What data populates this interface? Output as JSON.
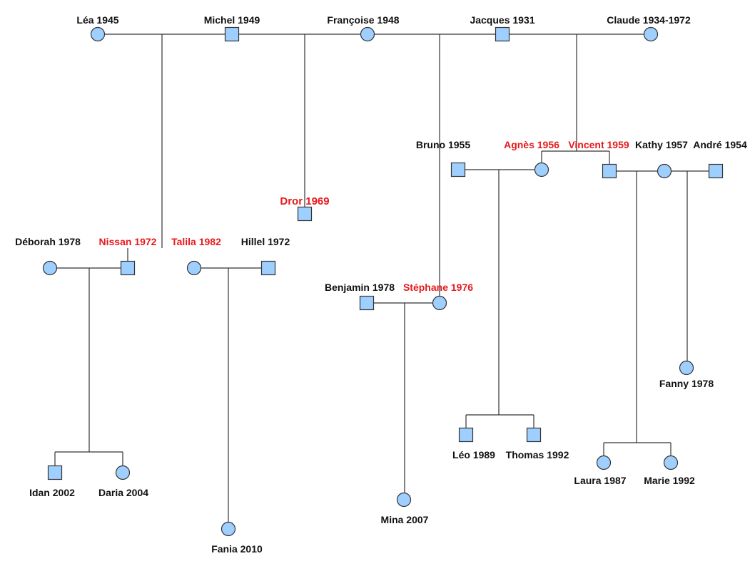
{
  "colors": {
    "node_fill": "#9fcfff",
    "line": "#333333",
    "label": "#111111",
    "highlight": "#e8191b"
  },
  "people": [
    {
      "id": "lea",
      "label": "Léa 1945",
      "sex": "F",
      "highlight": false
    },
    {
      "id": "michel",
      "label": "Michel 1949",
      "sex": "M",
      "highlight": false
    },
    {
      "id": "francoise",
      "label": "Françoise 1948",
      "sex": "F",
      "highlight": false
    },
    {
      "id": "jacques",
      "label": "Jacques 1931",
      "sex": "M",
      "highlight": false
    },
    {
      "id": "claude",
      "label": "Claude 1934-1972",
      "sex": "F",
      "highlight": false
    },
    {
      "id": "bruno",
      "label": "Bruno 1955",
      "sex": "M",
      "highlight": false
    },
    {
      "id": "agnes",
      "label": "Agnès 1956",
      "sex": "F",
      "highlight": true
    },
    {
      "id": "vincent",
      "label": "Vincent 1959",
      "sex": "M",
      "highlight": true
    },
    {
      "id": "kathy",
      "label": "Kathy 1957",
      "sex": "F",
      "highlight": false
    },
    {
      "id": "andre",
      "label": "André 1954",
      "sex": "M",
      "highlight": false
    },
    {
      "id": "dror",
      "label": "Dror 1969",
      "sex": "M",
      "highlight": true
    },
    {
      "id": "deborah",
      "label": "Déborah 1978",
      "sex": "F",
      "highlight": false
    },
    {
      "id": "nissan",
      "label": "Nissan 1972",
      "sex": "M",
      "highlight": true
    },
    {
      "id": "talila",
      "label": "Talila 1982",
      "sex": "F",
      "highlight": true
    },
    {
      "id": "hillel",
      "label": "Hillel 1972",
      "sex": "M",
      "highlight": false
    },
    {
      "id": "benjamin",
      "label": "Benjamin 1978",
      "sex": "M",
      "highlight": false
    },
    {
      "id": "stephane",
      "label": "Stéphane 1976",
      "sex": "F",
      "highlight": true
    },
    {
      "id": "fanny",
      "label": "Fanny 1978",
      "sex": "F",
      "highlight": false
    },
    {
      "id": "leo",
      "label": "Léo 1989",
      "sex": "M",
      "highlight": false
    },
    {
      "id": "thomas",
      "label": "Thomas 1992",
      "sex": "M",
      "highlight": false
    },
    {
      "id": "laura",
      "label": "Laura 1987",
      "sex": "F",
      "highlight": false
    },
    {
      "id": "marie",
      "label": "Marie 1992",
      "sex": "F",
      "highlight": false
    },
    {
      "id": "idan",
      "label": "Idan 2002",
      "sex": "M",
      "highlight": false
    },
    {
      "id": "daria",
      "label": "Daria 2004",
      "sex": "F",
      "highlight": false
    },
    {
      "id": "mina",
      "label": "Mina 2007",
      "sex": "F",
      "highlight": false
    },
    {
      "id": "fania",
      "label": "Fania 2010",
      "sex": "F",
      "highlight": false
    }
  ],
  "unions": [
    {
      "partners": [
        "lea",
        "michel"
      ],
      "children": [
        "nissan"
      ]
    },
    {
      "partners": [
        "michel",
        "francoise"
      ],
      "children": [
        "dror"
      ]
    },
    {
      "partners": [
        "francoise",
        "jacques"
      ],
      "children": [
        "stephane"
      ]
    },
    {
      "partners": [
        "jacques",
        "claude"
      ],
      "children": [
        "agnes",
        "vincent"
      ]
    },
    {
      "partners": [
        "bruno",
        "agnes"
      ],
      "children": [
        "leo",
        "thomas"
      ]
    },
    {
      "partners": [
        "vincent",
        "kathy"
      ],
      "children": [
        "laura",
        "marie"
      ]
    },
    {
      "partners": [
        "kathy",
        "andre"
      ],
      "children": [
        "fanny"
      ]
    },
    {
      "partners": [
        "deborah",
        "nissan"
      ],
      "children": [
        "idan",
        "daria"
      ]
    },
    {
      "partners": [
        "talila",
        "hillel"
      ],
      "children": [
        "fania"
      ]
    },
    {
      "partners": [
        "benjamin",
        "stephane"
      ],
      "children": [
        "mina"
      ]
    }
  ]
}
